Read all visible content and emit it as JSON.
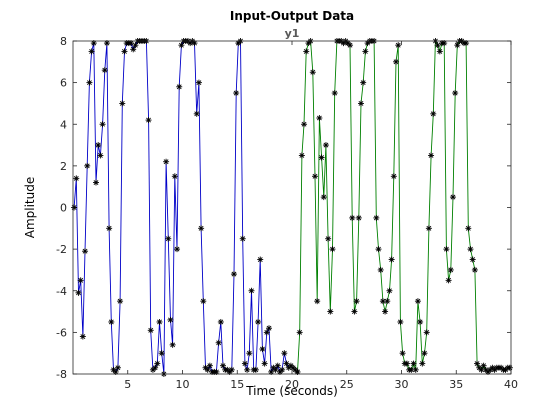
{
  "chart_data": {
    "type": "line",
    "title": "Input-Output Data",
    "subtitle": "y1",
    "xlabel": "Time (seconds)",
    "ylabel": "Amplitude",
    "xlim": [
      0,
      40
    ],
    "ylim": [
      -8,
      8
    ],
    "xticks": [
      5,
      10,
      15,
      20,
      25,
      30,
      35,
      40
    ],
    "yticks": [
      -8,
      -6,
      -4,
      -2,
      0,
      2,
      4,
      6,
      8
    ],
    "grid": false,
    "marker": "*",
    "marker_color": "#000000",
    "series": [
      {
        "color": "#0000c8",
        "x": [
          0.1,
          0.3,
          0.5,
          0.7,
          0.9,
          1.1,
          1.3,
          1.5,
          1.7,
          1.9,
          2.1,
          2.3,
          2.5,
          2.7,
          2.9,
          3.1,
          3.3,
          3.5,
          3.7,
          3.9,
          4.1,
          4.3,
          4.5,
          4.7,
          4.9,
          5.1,
          5.3,
          5.5,
          5.7,
          5.9,
          6.1,
          6.3,
          6.5,
          6.7,
          6.9,
          7.1,
          7.3,
          7.5,
          7.7,
          7.9,
          8.1,
          8.3,
          8.5,
          8.7,
          8.9,
          9.1,
          9.3,
          9.5,
          9.7,
          9.9,
          10.1,
          10.3,
          10.5,
          10.7,
          10.9,
          11.1,
          11.3,
          11.5,
          11.7,
          11.9,
          12.1,
          12.3,
          12.5,
          12.7,
          12.9,
          13.1,
          13.3,
          13.5,
          13.7,
          13.9,
          14.1,
          14.3,
          14.5,
          14.7,
          14.9,
          15.1,
          15.3,
          15.5,
          15.7,
          15.9,
          16.1,
          16.3,
          16.5,
          16.7,
          16.9,
          17.1,
          17.3,
          17.5,
          17.7,
          17.9,
          18.1,
          18.3,
          18.5,
          18.7,
          18.9,
          19.1,
          19.3,
          19.5,
          19.7,
          19.9,
          20.1,
          20.3,
          20.5
        ],
        "y": [
          0.0,
          1.4,
          -4.1,
          -3.5,
          -6.2,
          -2.1,
          2.0,
          6.0,
          7.5,
          7.9,
          1.2,
          3.0,
          2.5,
          4.0,
          6.6,
          7.9,
          -1.0,
          -5.5,
          -7.8,
          -7.9,
          -7.7,
          -4.5,
          5.0,
          7.5,
          7.9,
          7.9,
          7.9,
          7.6,
          7.8,
          8.0,
          8.0,
          8.0,
          8.0,
          8.0,
          4.2,
          -5.9,
          -7.8,
          -7.7,
          -7.5,
          -5.5,
          -7.0,
          -8.0,
          2.2,
          -1.5,
          -5.4,
          -6.6,
          1.5,
          -2.0,
          5.8,
          7.8,
          8.0,
          8.0,
          8.0,
          7.9,
          8.0,
          7.9,
          4.5,
          6.0,
          -1.0,
          -4.5,
          -7.7,
          -7.8,
          -7.6,
          -7.9,
          -7.9,
          -7.9,
          -6.5,
          -5.5,
          -7.6,
          -7.8,
          -7.8,
          -7.9,
          -7.8,
          -3.2,
          5.5,
          7.9,
          8.0,
          -1.5,
          -7.5,
          -7.8,
          -7.0,
          -4.0,
          -7.8,
          -7.8,
          -5.5,
          -2.5,
          -6.8,
          -7.5,
          -6.0,
          -5.8,
          -7.9,
          -7.7,
          -7.8,
          -7.6,
          -7.9,
          -7.8,
          -7.0,
          -7.5,
          -7.7,
          -7.6,
          -7.7,
          -7.8,
          -7.9
        ]
      },
      {
        "color": "#008000",
        "x": [
          20.5,
          20.7,
          20.9,
          21.1,
          21.3,
          21.5,
          21.7,
          21.9,
          22.1,
          22.3,
          22.5,
          22.7,
          22.9,
          23.1,
          23.3,
          23.5,
          23.7,
          23.9,
          24.1,
          24.3,
          24.5,
          24.7,
          24.9,
          25.1,
          25.3,
          25.5,
          25.7,
          25.9,
          26.1,
          26.3,
          26.5,
          26.7,
          26.9,
          27.1,
          27.3,
          27.5,
          27.7,
          27.9,
          28.1,
          28.3,
          28.5,
          28.7,
          28.9,
          29.1,
          29.3,
          29.5,
          29.7,
          29.9,
          30.1,
          30.3,
          30.5,
          30.7,
          30.9,
          31.1,
          31.3,
          31.5,
          31.7,
          31.9,
          32.1,
          32.3,
          32.5,
          32.7,
          32.9,
          33.1,
          33.3,
          33.5,
          33.7,
          33.9,
          34.1,
          34.3,
          34.5,
          34.7,
          34.9,
          35.1,
          35.3,
          35.5,
          35.7,
          35.9,
          36.1,
          36.3,
          36.5,
          36.7,
          36.9,
          37.1,
          37.3,
          37.5,
          37.7,
          37.9,
          38.1,
          38.3,
          38.5,
          38.7,
          38.9,
          39.1,
          39.3,
          39.5,
          39.7,
          39.9
        ],
        "y": [
          -7.9,
          -6.0,
          2.5,
          4.0,
          7.5,
          7.9,
          8.0,
          6.5,
          1.5,
          -4.5,
          4.3,
          2.4,
          0.5,
          3.0,
          -1.5,
          -5.0,
          -2.0,
          5.5,
          8.0,
          8.0,
          8.0,
          7.9,
          8.0,
          7.9,
          7.8,
          -0.5,
          -5.0,
          -4.5,
          -0.5,
          5.0,
          6.0,
          7.5,
          7.9,
          8.0,
          8.0,
          8.0,
          -0.5,
          -2.0,
          -3.0,
          -4.5,
          -5.0,
          -4.5,
          -4.0,
          -2.5,
          1.5,
          7.0,
          7.8,
          -5.5,
          -7.0,
          -7.5,
          -7.5,
          -7.8,
          -7.8,
          -7.5,
          -7.8,
          -4.5,
          -5.5,
          -7.5,
          -7.0,
          -6.0,
          -1.0,
          2.5,
          4.5,
          8.0,
          7.8,
          7.5,
          7.9,
          7.9,
          -2.0,
          -3.5,
          -3.0,
          0.5,
          5.5,
          7.8,
          8.0,
          8.0,
          7.9,
          7.9,
          -1.0,
          -2.0,
          -2.5,
          -3.0,
          -7.5,
          -7.7,
          -7.8,
          -7.6,
          -7.8,
          -7.9,
          -7.8,
          -7.7,
          -7.8,
          -7.7,
          -7.7,
          -7.7,
          -7.8,
          -7.8,
          -7.7,
          -7.7
        ]
      }
    ]
  }
}
